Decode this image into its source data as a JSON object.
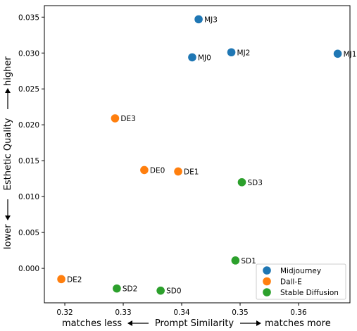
{
  "chart_data": {
    "type": "scatter",
    "title": "",
    "xlabel": "Prompt Similarity",
    "xlabel_left": "matches less",
    "xlabel_right": "matches more",
    "ylabel": "Esthetic Quality",
    "ylabel_low": "lower",
    "ylabel_high": "higher",
    "xlim": [
      0.3165,
      0.3688
    ],
    "ylim": [
      -0.0048,
      0.0366
    ],
    "xticks": [
      {
        "value": 0.32,
        "label": "0.32"
      },
      {
        "value": 0.33,
        "label": "0.33"
      },
      {
        "value": 0.34,
        "label": "0.34"
      },
      {
        "value": 0.35,
        "label": "0.35"
      },
      {
        "value": 0.36,
        "label": "0.36"
      }
    ],
    "yticks": [
      {
        "value": 0.0,
        "label": "0.000"
      },
      {
        "value": 0.005,
        "label": "0.005"
      },
      {
        "value": 0.01,
        "label": "0.010"
      },
      {
        "value": 0.015,
        "label": "0.015"
      },
      {
        "value": 0.02,
        "label": "0.020"
      },
      {
        "value": 0.025,
        "label": "0.025"
      },
      {
        "value": 0.03,
        "label": "0.030"
      },
      {
        "value": 0.035,
        "label": "0.035"
      }
    ],
    "grid": false,
    "legend_position": "bottom-right",
    "series": [
      {
        "name": "Midjourney",
        "color": "#1f77b4",
        "points": [
          {
            "label": "MJ0",
            "x": 0.3418,
            "y": 0.0294
          },
          {
            "label": "MJ1",
            "x": 0.3667,
            "y": 0.0299
          },
          {
            "label": "MJ2",
            "x": 0.3485,
            "y": 0.0301
          },
          {
            "label": "MJ3",
            "x": 0.3429,
            "y": 0.0347
          }
        ]
      },
      {
        "name": "Dall-E",
        "color": "#ff7f0e",
        "points": [
          {
            "label": "DE0",
            "x": 0.3336,
            "y": 0.0137
          },
          {
            "label": "DE1",
            "x": 0.3394,
            "y": 0.0135
          },
          {
            "label": "DE2",
            "x": 0.3194,
            "y": -0.0015
          },
          {
            "label": "DE3",
            "x": 0.3286,
            "y": 0.0209
          }
        ]
      },
      {
        "name": "Stable Diffusion",
        "color": "#2ca02c",
        "points": [
          {
            "label": "SD0",
            "x": 0.3364,
            "y": -0.0031
          },
          {
            "label": "SD1",
            "x": 0.3492,
            "y": 0.0011
          },
          {
            "label": "SD2",
            "x": 0.3289,
            "y": -0.0028
          },
          {
            "label": "SD3",
            "x": 0.3503,
            "y": 0.012
          }
        ]
      }
    ]
  }
}
